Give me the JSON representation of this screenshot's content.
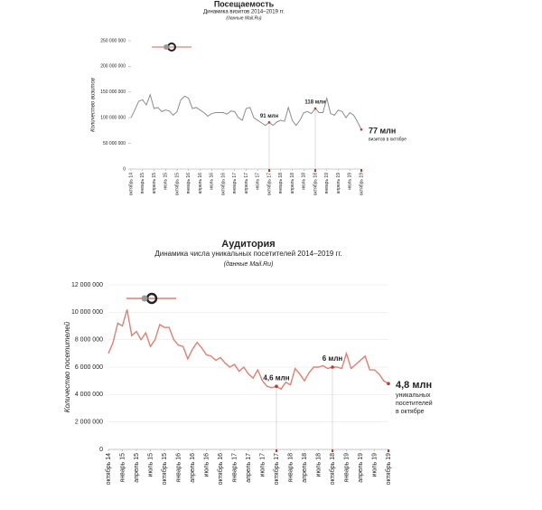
{
  "chart_data": [
    {
      "type": "line",
      "title": "Посещаемость",
      "subtitle": "Динамика визитов 2014–2019 гг.",
      "source": "(данные Mail.Ru)",
      "y_label": "Количество визитов",
      "color": "#8c8c8c",
      "marker_color": "#c0392b",
      "grid": false,
      "ylim": [
        0,
        250000000
      ],
      "yticks": [
        0,
        {
          "value": 50000000,
          "label": "50 000 000"
        },
        {
          "value": 100000000,
          "label": "100 000 000"
        },
        {
          "value": 150000000,
          "label": "150 000 000"
        },
        {
          "value": 200000000,
          "label": "200 000 000"
        },
        {
          "value": 250000000,
          "label": "250 000 000"
        }
      ],
      "categories": [
        "октябрь 14",
        null,
        null,
        "январь 15",
        null,
        null,
        "апрель 15",
        null,
        null,
        "июль 15",
        null,
        null,
        "октябрь 15",
        null,
        null,
        "январь 16",
        null,
        null,
        "апрель 16",
        null,
        null,
        "июль 16",
        null,
        null,
        "октябрь 16",
        null,
        null,
        "январь 17",
        null,
        null,
        "апрель 17",
        null,
        null,
        "июль 17",
        null,
        null,
        "октябрь 17",
        null,
        null,
        "январь 18",
        null,
        null,
        "апрель 18",
        null,
        null,
        "июль 18",
        null,
        null,
        "октябрь 18",
        null,
        null,
        "январь 19",
        null,
        null,
        "апрель 19",
        null,
        null,
        "июль 19",
        null,
        null,
        "октябрь 19"
      ],
      "values": [
        100000000,
        115000000,
        132000000,
        135000000,
        125000000,
        145000000,
        118000000,
        120000000,
        112000000,
        115000000,
        113000000,
        105000000,
        112000000,
        135000000,
        142000000,
        138000000,
        118000000,
        120000000,
        115000000,
        110000000,
        103000000,
        108000000,
        110000000,
        110000000,
        110000000,
        107000000,
        113000000,
        112000000,
        100000000,
        95000000,
        118000000,
        120000000,
        100000000,
        95000000,
        90000000,
        85000000,
        91000000,
        85000000,
        92000000,
        95000000,
        93000000,
        120000000,
        95000000,
        85000000,
        95000000,
        110000000,
        112000000,
        108000000,
        118000000,
        110000000,
        110000000,
        138000000,
        108000000,
        105000000,
        115000000,
        112000000,
        100000000,
        110000000,
        105000000,
        92000000,
        77000000
      ],
      "value_labels": [
        null,
        null,
        null,
        null,
        null,
        null,
        null,
        null,
        null,
        null,
        null,
        null,
        null,
        null,
        null,
        null,
        null,
        null,
        null,
        null,
        null,
        null,
        null,
        null,
        null,
        null,
        null,
        null,
        null,
        null,
        null,
        null,
        null,
        null,
        null,
        null,
        "91 млн",
        null,
        null,
        null,
        null,
        null,
        null,
        null,
        null,
        null,
        null,
        null,
        "118 млн",
        null,
        null,
        null,
        null,
        null,
        null,
        null,
        null,
        null,
        null,
        null,
        "77 млн"
      ],
      "annotation": "визитов в октябре"
    },
    {
      "type": "line",
      "title": "Аудитория",
      "subtitle": "Динамика числа уникальных посетителей 2014–2019 гг.",
      "source": "(данные Mail.Ru)",
      "y_label": "Количество посетителей",
      "color": "#d98276",
      "marker_color": "#c0392b",
      "grid": true,
      "ylim": [
        0,
        12000000
      ],
      "yticks": [
        0,
        {
          "value": 2000000,
          "label": "2 000 000"
        },
        {
          "value": 4000000,
          "label": "4 000 000"
        },
        {
          "value": 6000000,
          "label": "6 000 000"
        },
        {
          "value": 8000000,
          "label": "8 000 000"
        },
        {
          "value": 10000000,
          "label": "10 000 000"
        },
        {
          "value": 12000000,
          "label": "12 000 000"
        }
      ],
      "categories": [
        "октябрь 14",
        null,
        null,
        "январь 15",
        null,
        null,
        "апрель 15",
        null,
        null,
        "июль 15",
        null,
        null,
        "октябрь 15",
        null,
        null,
        "январь 16",
        null,
        null,
        "апрель 16",
        null,
        null,
        "июль 16",
        null,
        null,
        "октябрь 16",
        null,
        null,
        "январь 17",
        null,
        null,
        "апрель 17",
        null,
        null,
        "июль 17",
        null,
        null,
        "октябрь 17",
        null,
        null,
        "январь 18",
        null,
        null,
        "апрель 18",
        null,
        null,
        "июль 18",
        null,
        null,
        "октябрь 18",
        null,
        null,
        "январь 19",
        null,
        null,
        "апрель 19",
        null,
        null,
        "июль 19",
        null,
        null,
        "октябрь 19"
      ],
      "values": [
        7000000,
        7800000,
        9200000,
        9000000,
        10200000,
        8300000,
        8600000,
        8000000,
        8500000,
        7500000,
        8000000,
        9100000,
        8900000,
        8900000,
        8000000,
        7600000,
        7500000,
        6600000,
        7300000,
        7800000,
        7400000,
        6900000,
        6800000,
        6500000,
        6700000,
        6300000,
        6000000,
        6200000,
        5700000,
        6000000,
        5500000,
        5200000,
        5800000,
        5000000,
        4600000,
        4500000,
        4600000,
        4400000,
        4900000,
        4700000,
        5900000,
        5500000,
        5000000,
        5600000,
        6000000,
        6000000,
        6100000,
        5900000,
        6000000,
        6000000,
        5900000,
        7000000,
        5900000,
        6200000,
        6500000,
        6800000,
        5800000,
        5800000,
        5500000,
        5000000,
        4800000
      ],
      "value_labels": [
        null,
        null,
        null,
        null,
        null,
        null,
        null,
        null,
        null,
        null,
        null,
        null,
        null,
        null,
        null,
        null,
        null,
        null,
        null,
        null,
        null,
        null,
        null,
        null,
        null,
        null,
        null,
        null,
        null,
        null,
        null,
        null,
        null,
        null,
        null,
        null,
        "4,6 млн",
        null,
        null,
        null,
        null,
        null,
        null,
        null,
        null,
        null,
        null,
        null,
        "6 млн",
        null,
        null,
        null,
        null,
        null,
        null,
        null,
        null,
        null,
        null,
        null,
        "4,8 млн"
      ],
      "annotation": "уникальных посетителей в октябре"
    }
  ]
}
